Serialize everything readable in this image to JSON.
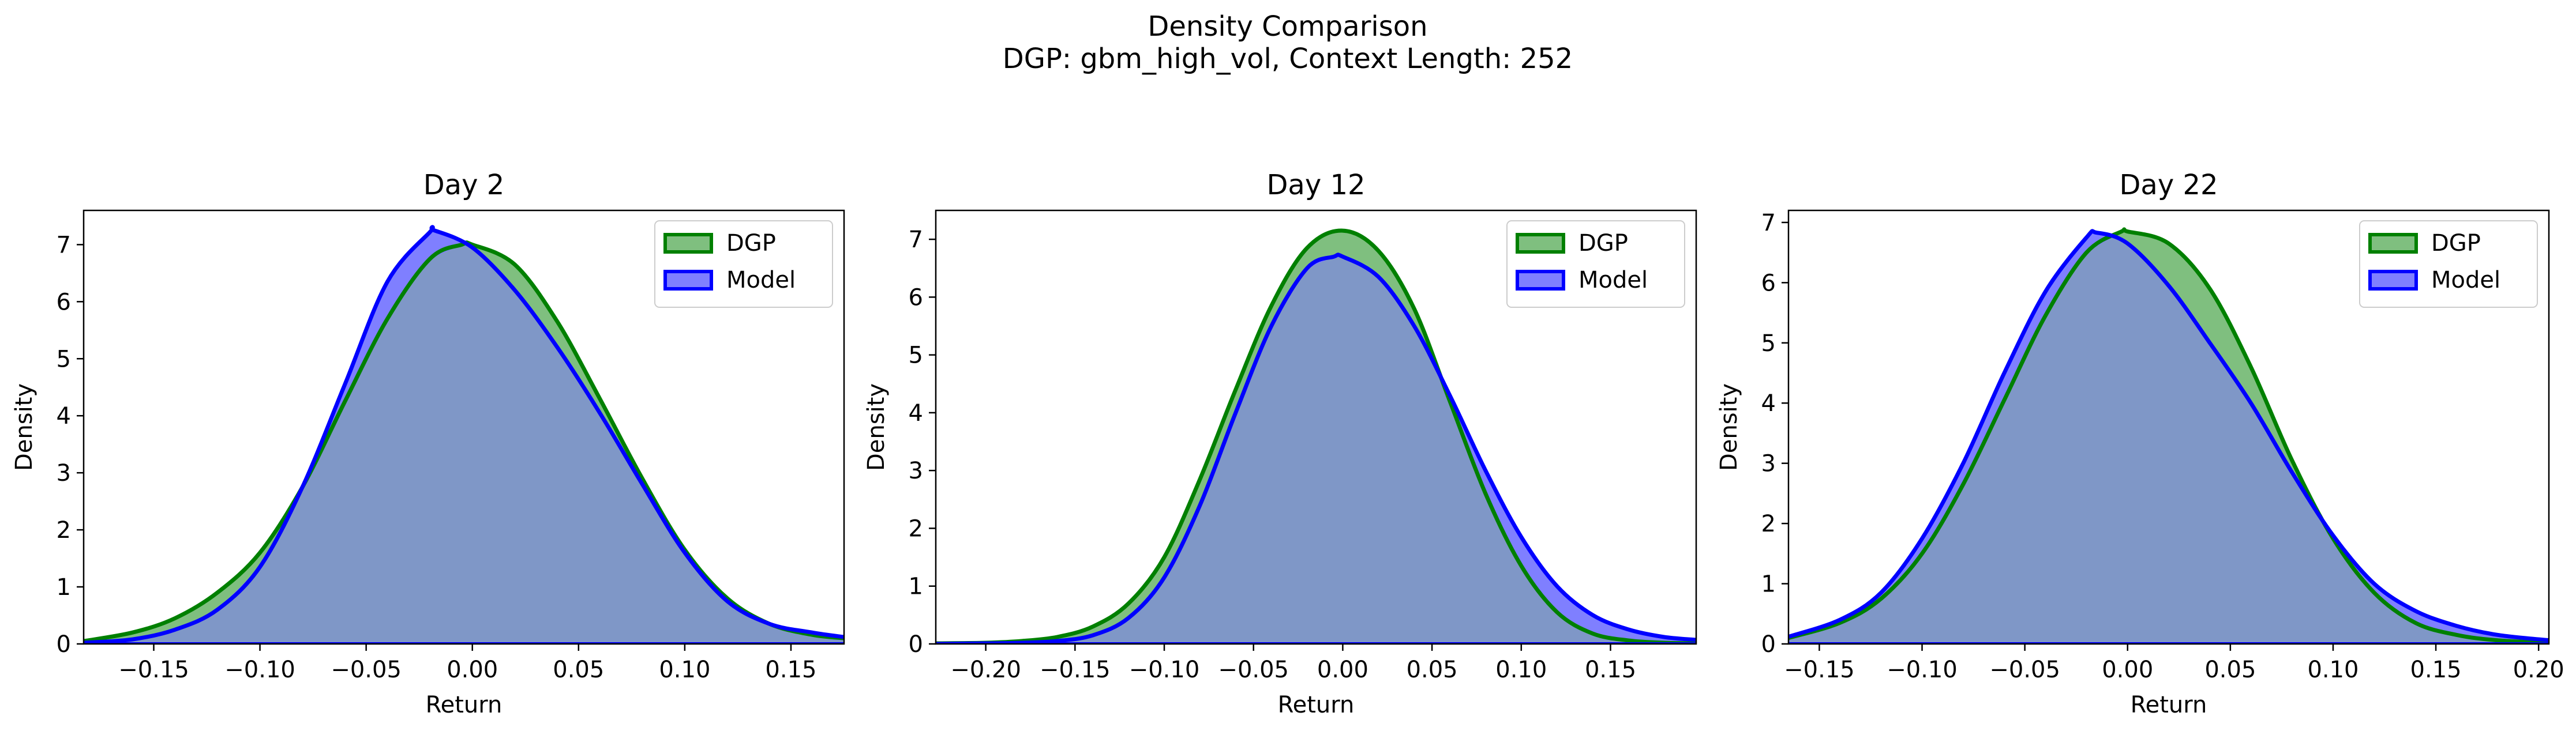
{
  "figure": {
    "title_line1": "Density Comparison",
    "title_line2": "DGP: gbm_high_vol, Context Length: 252"
  },
  "colors": {
    "dgp_line": "#008000",
    "dgp_fill": "#7fbf7f",
    "model_line": "#0000ff",
    "model_fill": "#7f7fff",
    "overlap_fill": "#7f97c7"
  },
  "chart_data": [
    {
      "type": "area",
      "title": "Day 2",
      "xlabel": "Return",
      "ylabel": "Density",
      "xlim": [
        -0.183,
        0.175
      ],
      "ylim": [
        0,
        7.6
      ],
      "xticks": [
        -0.15,
        -0.1,
        -0.05,
        0.0,
        0.05,
        0.1,
        0.15
      ],
      "xtick_labels": [
        "−0.15",
        "−0.10",
        "−0.05",
        "0.00",
        "0.05",
        "0.10",
        "0.15"
      ],
      "yticks": [
        0,
        1,
        2,
        3,
        4,
        5,
        6,
        7
      ],
      "legend": {
        "position": "upper right",
        "entries": [
          "DGP",
          "Model"
        ]
      },
      "series": [
        {
          "name": "DGP",
          "x": [
            -0.183,
            -0.16,
            -0.14,
            -0.12,
            -0.1,
            -0.08,
            -0.06,
            -0.04,
            -0.02,
            -0.005,
            0.0,
            0.02,
            0.04,
            0.06,
            0.08,
            0.1,
            0.12,
            0.14,
            0.16,
            0.175
          ],
          "y": [
            0.05,
            0.2,
            0.45,
            0.9,
            1.6,
            2.75,
            4.25,
            5.7,
            6.75,
            7.0,
            7.0,
            6.65,
            5.65,
            4.3,
            2.9,
            1.65,
            0.8,
            0.35,
            0.16,
            0.1
          ]
        },
        {
          "name": "Model",
          "x": [
            -0.183,
            -0.16,
            -0.14,
            -0.12,
            -0.1,
            -0.08,
            -0.06,
            -0.04,
            -0.02,
            -0.018,
            0.0,
            0.02,
            0.04,
            0.06,
            0.08,
            0.1,
            0.12,
            0.14,
            0.16,
            0.175
          ],
          "y": [
            0.02,
            0.08,
            0.25,
            0.6,
            1.35,
            2.75,
            4.55,
            6.35,
            7.22,
            7.25,
            6.95,
            6.2,
            5.2,
            4.05,
            2.8,
            1.6,
            0.75,
            0.35,
            0.2,
            0.12
          ]
        }
      ]
    },
    {
      "type": "area",
      "title": "Day 12",
      "xlabel": "Return",
      "ylabel": "Density",
      "xlim": [
        -0.228,
        0.198
      ],
      "ylim": [
        0,
        7.5
      ],
      "xticks": [
        -0.2,
        -0.15,
        -0.1,
        -0.05,
        0.0,
        0.05,
        0.1,
        0.15
      ],
      "xtick_labels": [
        "−0.20",
        "−0.15",
        "−0.10",
        "−0.05",
        "0.00",
        "0.05",
        "0.10",
        "0.15"
      ],
      "yticks": [
        0,
        1,
        2,
        3,
        4,
        5,
        6,
        7
      ],
      "legend": {
        "position": "upper right",
        "entries": [
          "DGP",
          "Model"
        ]
      },
      "series": [
        {
          "name": "DGP",
          "x": [
            -0.228,
            -0.2,
            -0.18,
            -0.16,
            -0.14,
            -0.12,
            -0.1,
            -0.08,
            -0.06,
            -0.04,
            -0.02,
            0.0,
            0.02,
            0.04,
            0.06,
            0.08,
            0.1,
            0.12,
            0.14,
            0.16,
            0.18,
            0.198
          ],
          "y": [
            0.01,
            0.02,
            0.05,
            0.12,
            0.3,
            0.7,
            1.5,
            2.85,
            4.4,
            5.85,
            6.85,
            7.15,
            6.8,
            5.8,
            4.2,
            2.6,
            1.35,
            0.55,
            0.18,
            0.06,
            0.02,
            0.01
          ]
        },
        {
          "name": "Model",
          "x": [
            -0.228,
            -0.2,
            -0.18,
            -0.16,
            -0.14,
            -0.12,
            -0.1,
            -0.08,
            -0.06,
            -0.04,
            -0.02,
            -0.005,
            0.0,
            0.02,
            0.04,
            0.06,
            0.08,
            0.1,
            0.12,
            0.14,
            0.16,
            0.18,
            0.198
          ],
          "y": [
            0.0,
            0.01,
            0.02,
            0.05,
            0.15,
            0.45,
            1.15,
            2.4,
            4.0,
            5.5,
            6.5,
            6.7,
            6.7,
            6.35,
            5.5,
            4.3,
            3.0,
            1.85,
            1.0,
            0.5,
            0.25,
            0.12,
            0.07
          ]
        }
      ]
    },
    {
      "type": "area",
      "title": "Day 22",
      "xlabel": "Return",
      "ylabel": "Density",
      "xlim": [
        -0.165,
        0.205
      ],
      "ylim": [
        0,
        7.2
      ],
      "xticks": [
        -0.15,
        -0.1,
        -0.05,
        0.0,
        0.05,
        0.1,
        0.15,
        0.2
      ],
      "xtick_labels": [
        "−0.15",
        "−0.10",
        "−0.05",
        "0.00",
        "0.05",
        "0.10",
        "0.15",
        "0.20"
      ],
      "yticks": [
        0,
        1,
        2,
        3,
        4,
        5,
        6,
        7
      ],
      "legend": {
        "position": "upper right",
        "entries": [
          "DGP",
          "Model"
        ]
      },
      "series": [
        {
          "name": "DGP",
          "x": [
            -0.165,
            -0.14,
            -0.12,
            -0.1,
            -0.08,
            -0.06,
            -0.04,
            -0.02,
            -0.003,
            0.0,
            0.02,
            0.04,
            0.06,
            0.08,
            0.1,
            0.12,
            0.14,
            0.16,
            0.18,
            0.205
          ],
          "y": [
            0.1,
            0.35,
            0.75,
            1.5,
            2.65,
            4.05,
            5.45,
            6.5,
            6.85,
            6.85,
            6.65,
            5.9,
            4.6,
            3.05,
            1.75,
            0.85,
            0.35,
            0.15,
            0.06,
            0.02
          ]
        },
        {
          "name": "Model",
          "x": [
            -0.165,
            -0.14,
            -0.12,
            -0.1,
            -0.08,
            -0.06,
            -0.04,
            -0.02,
            -0.015,
            0.0,
            0.02,
            0.04,
            0.06,
            0.08,
            0.1,
            0.12,
            0.14,
            0.16,
            0.18,
            0.205
          ],
          "y": [
            0.12,
            0.4,
            0.85,
            1.75,
            3.0,
            4.5,
            5.85,
            6.75,
            6.83,
            6.65,
            5.95,
            5.0,
            4.0,
            2.85,
            1.8,
            1.0,
            0.55,
            0.3,
            0.15,
            0.06
          ]
        }
      ]
    }
  ]
}
